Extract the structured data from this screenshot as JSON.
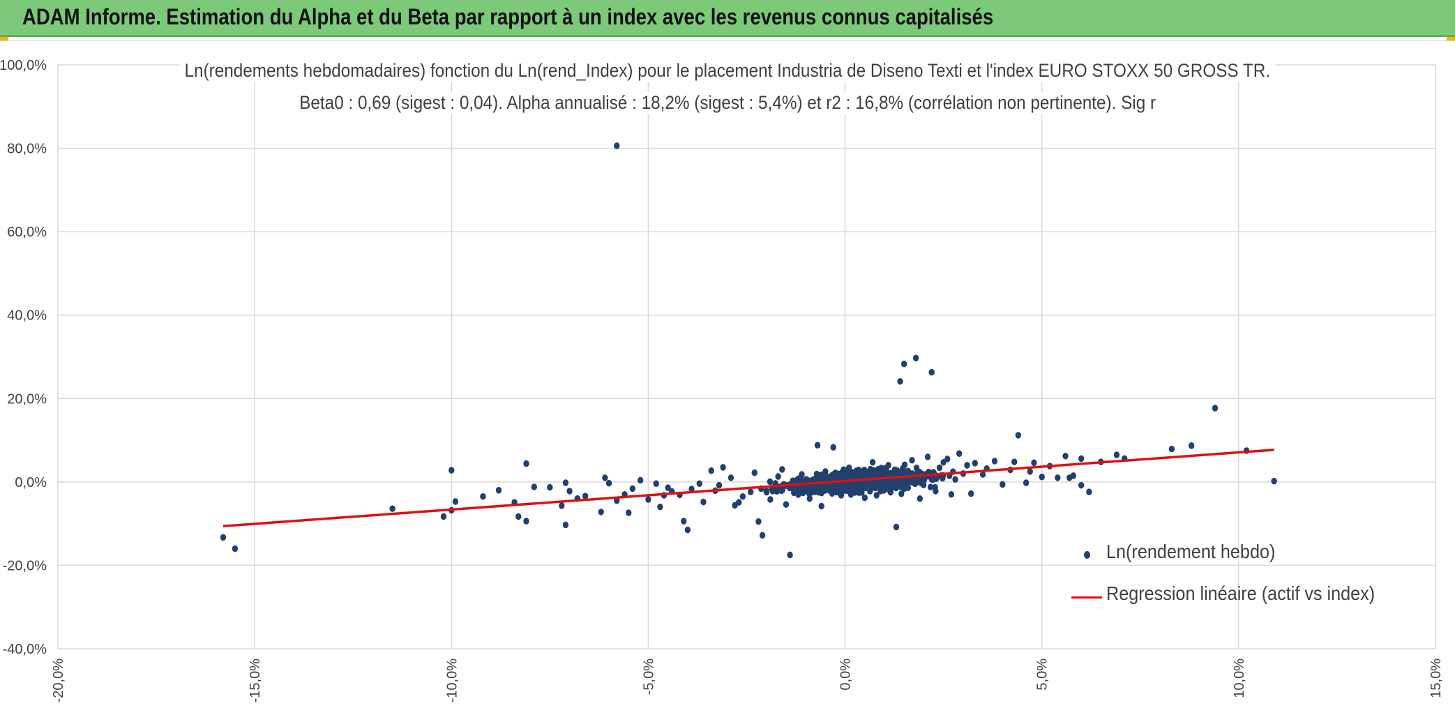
{
  "banner": {
    "title": "ADAM Informe. Estimation du Alpha et du Beta par rapport à un index avec les revenus connus capitalisés",
    "color": "#7dc97a"
  },
  "chart_data": {
    "type": "scatter",
    "title": "Ln(rendements hebdomadaires) fonction du Ln(rend_Index) pour le placement Industria de Diseno Texti et l'index EURO STOXX 50 GROSS TR.",
    "subtitle": "Beta0 : 0,69 (sigest : 0,04). Alpha annualisé : 18,2% (sigest : 5,4%) et r2 : 16,8% (corrélation non pertinente). Sig r",
    "xlabel": "",
    "ylabel": "",
    "xlim": [
      -0.2,
      0.15
    ],
    "ylim": [
      -0.4,
      1.0
    ],
    "x_ticks": [
      "-20,0%",
      "-15,0%",
      "-10,0%",
      "-5,0%",
      "0,0%",
      "5,0%",
      "10,0%",
      "15,0%"
    ],
    "y_ticks": [
      "-40,0%",
      "-20,0%",
      "0,0%",
      "20,0%",
      "40,0%",
      "60,0%",
      "80,0%",
      "100,0%"
    ],
    "grid": true,
    "legend_position": "bottom-right",
    "series": [
      {
        "name": "Ln(rendement hebdo)",
        "kind": "points",
        "color": "#22406e",
        "points": [
          [
            -0.158,
            -0.133
          ],
          [
            -0.155,
            -0.16
          ],
          [
            -0.115,
            -0.064
          ],
          [
            -0.102,
            -0.083
          ],
          [
            -0.1,
            -0.068
          ],
          [
            -0.1,
            0.028
          ],
          [
            -0.099,
            -0.047
          ],
          [
            -0.084,
            -0.049
          ],
          [
            -0.083,
            -0.083
          ],
          [
            -0.081,
            -0.094
          ],
          [
            -0.081,
            0.044
          ],
          [
            -0.075,
            -0.013
          ],
          [
            -0.072,
            -0.057
          ],
          [
            -0.071,
            -0.103
          ],
          [
            -0.071,
            -0.002
          ],
          [
            -0.07,
            -0.022
          ],
          [
            -0.068,
            -0.04
          ],
          [
            -0.062,
            -0.072
          ],
          [
            -0.061,
            0.01
          ],
          [
            -0.058,
            -0.045
          ],
          [
            -0.058,
            0.806
          ],
          [
            -0.056,
            -0.03
          ],
          [
            -0.055,
            -0.074
          ],
          [
            -0.054,
            -0.016
          ],
          [
            -0.052,
            0.004
          ],
          [
            -0.05,
            -0.042
          ],
          [
            -0.048,
            -0.004
          ],
          [
            -0.046,
            -0.032
          ],
          [
            -0.044,
            -0.023
          ],
          [
            -0.042,
            -0.031
          ],
          [
            -0.041,
            -0.094
          ],
          [
            -0.04,
            -0.115
          ],
          [
            -0.039,
            -0.017
          ],
          [
            -0.037,
            -0.004
          ],
          [
            -0.034,
            0.027
          ],
          [
            -0.033,
            -0.021
          ],
          [
            -0.031,
            0.035
          ],
          [
            -0.028,
            -0.056
          ],
          [
            -0.027,
            -0.049
          ],
          [
            -0.024,
            -0.024
          ],
          [
            -0.022,
            -0.095
          ],
          [
            -0.021,
            -0.128
          ],
          [
            -0.02,
            -0.022
          ],
          [
            -0.018,
            -0.02
          ],
          [
            -0.017,
            0.013
          ],
          [
            -0.015,
            -0.054
          ],
          [
            -0.014,
            -0.175
          ],
          [
            -0.012,
            -0.014
          ],
          [
            -0.01,
            -0.002
          ],
          [
            -0.008,
            0.006
          ],
          [
            -0.006,
            -0.058
          ],
          [
            -0.004,
            -0.02
          ],
          [
            -0.002,
            0.015
          ],
          [
            0.0,
            -0.004
          ],
          [
            0.002,
            0.012
          ],
          [
            0.004,
            -0.01
          ],
          [
            0.006,
            0.021
          ],
          [
            0.008,
            -0.032
          ],
          [
            0.01,
            0.032
          ],
          [
            0.012,
            0.008
          ],
          [
            0.013,
            -0.108
          ],
          [
            0.014,
            0.241
          ],
          [
            0.015,
            0.283
          ],
          [
            0.016,
            -0.014
          ],
          [
            0.018,
            0.297
          ],
          [
            0.02,
            0.003
          ],
          [
            0.022,
            0.263
          ],
          [
            0.024,
            0.034
          ],
          [
            0.026,
            0.055
          ],
          [
            0.028,
            0.006
          ],
          [
            0.03,
            0.02
          ],
          [
            0.032,
            -0.028
          ],
          [
            0.035,
            0.018
          ],
          [
            0.038,
            0.05
          ],
          [
            0.04,
            -0.006
          ],
          [
            0.042,
            0.029
          ],
          [
            0.044,
            0.112
          ],
          [
            0.046,
            -0.002
          ],
          [
            0.048,
            0.046
          ],
          [
            0.05,
            0.012
          ],
          [
            0.052,
            0.038
          ],
          [
            0.054,
            0.01
          ],
          [
            0.056,
            0.062
          ],
          [
            0.058,
            0.015
          ],
          [
            0.06,
            0.056
          ],
          [
            0.06,
            -0.008
          ],
          [
            0.062,
            -0.024
          ],
          [
            0.065,
            0.048
          ],
          [
            0.069,
            0.065
          ],
          [
            0.071,
            0.056
          ],
          [
            0.083,
            0.079
          ],
          [
            0.088,
            0.087
          ],
          [
            0.094,
            0.177
          ],
          [
            0.102,
            0.075
          ],
          [
            0.109,
            0.002
          ],
          [
            -0.092,
            -0.035
          ],
          [
            -0.088,
            -0.02
          ],
          [
            -0.079,
            -0.012
          ],
          [
            -0.066,
            -0.034
          ],
          [
            -0.06,
            -0.003
          ],
          [
            -0.047,
            -0.06
          ],
          [
            -0.045,
            -0.014
          ],
          [
            -0.036,
            -0.048
          ],
          [
            -0.032,
            -0.008
          ],
          [
            -0.029,
            0.01
          ],
          [
            -0.026,
            -0.035
          ],
          [
            -0.023,
            0.022
          ],
          [
            -0.019,
            -0.042
          ],
          [
            -0.016,
            0.03
          ],
          [
            -0.013,
            -0.026
          ],
          [
            -0.011,
            0.018
          ],
          [
            -0.009,
            -0.04
          ],
          [
            -0.007,
            0.088
          ],
          [
            -0.005,
            0.025
          ],
          [
            -0.003,
            0.083
          ],
          [
            -0.001,
            -0.032
          ],
          [
            0.001,
            0.034
          ],
          [
            0.003,
            0.024
          ],
          [
            0.005,
            -0.038
          ],
          [
            0.007,
            0.047
          ],
          [
            0.009,
            -0.022
          ],
          [
            0.011,
            0.04
          ],
          [
            0.017,
            0.052
          ],
          [
            0.019,
            -0.04
          ],
          [
            0.021,
            0.06
          ],
          [
            0.023,
            -0.022
          ],
          [
            0.025,
            0.047
          ],
          [
            0.027,
            -0.03
          ],
          [
            0.029,
            0.068
          ],
          [
            0.031,
            0.04
          ],
          [
            0.033,
            0.045
          ],
          [
            0.036,
            0.032
          ],
          [
            0.043,
            0.048
          ],
          [
            0.047,
            0.025
          ],
          [
            0.057,
            0.01
          ]
        ]
      },
      {
        "name": "Regression linéaire (actif vs index)",
        "kind": "line",
        "color": "#e01010",
        "points": [
          [
            -0.158,
            -0.106
          ],
          [
            0.109,
            0.077
          ]
        ]
      }
    ]
  }
}
